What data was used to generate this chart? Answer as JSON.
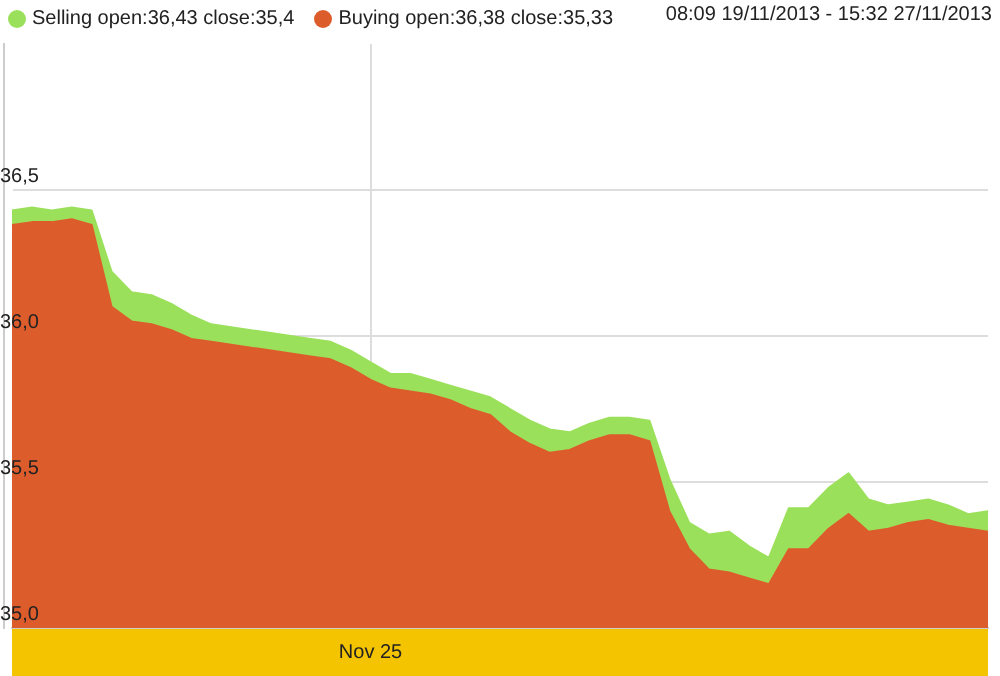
{
  "chart_data": {
    "type": "area",
    "annotations": [
      "08:09 19/11/2013 - 15:32 27/11/2013"
    ],
    "categories": [
      null,
      null,
      null,
      null,
      null,
      null,
      null,
      null,
      null,
      null,
      null,
      null,
      null,
      null,
      null,
      null,
      null,
      null,
      "Nov 25",
      null,
      null,
      null,
      null,
      null,
      null,
      null,
      null,
      null,
      null,
      null,
      null,
      null,
      null,
      null,
      null,
      null,
      null,
      null,
      null,
      null,
      null,
      null,
      null,
      null,
      null,
      null,
      null,
      null,
      null,
      null
    ],
    "series": [
      {
        "name": "Selling open:36,43 close:35,4",
        "color": "#9be05a",
        "values": [
          36.43,
          36.44,
          36.43,
          36.44,
          36.43,
          36.22,
          36.15,
          36.14,
          36.11,
          36.07,
          36.04,
          36.03,
          36.02,
          36.01,
          36.0,
          35.99,
          35.98,
          35.95,
          35.91,
          35.87,
          35.87,
          35.85,
          35.83,
          35.81,
          35.79,
          35.75,
          35.71,
          35.68,
          35.67,
          35.7,
          35.72,
          35.72,
          35.71,
          35.51,
          35.36,
          35.32,
          35.33,
          35.28,
          35.24,
          35.41,
          35.41,
          35.48,
          35.53,
          35.44,
          35.42,
          35.43,
          35.44,
          35.42,
          35.39,
          35.4
        ]
      },
      {
        "name": "Buying open:36,38 close:35,33",
        "color": "#dc5c2c",
        "values": [
          36.38,
          36.39,
          36.39,
          36.4,
          36.38,
          36.1,
          36.05,
          36.04,
          36.02,
          35.99,
          35.98,
          35.97,
          35.96,
          35.95,
          35.94,
          35.93,
          35.92,
          35.89,
          35.85,
          35.82,
          35.81,
          35.8,
          35.78,
          35.75,
          35.73,
          35.67,
          35.63,
          35.6,
          35.61,
          35.64,
          35.66,
          35.66,
          35.64,
          35.4,
          35.27,
          35.2,
          35.19,
          35.17,
          35.15,
          35.27,
          35.27,
          35.34,
          35.39,
          35.33,
          35.34,
          35.36,
          35.37,
          35.35,
          35.34,
          35.33
        ]
      }
    ],
    "ylim": [
      35,
      37
    ],
    "yticks": [
      {
        "value": 35,
        "label": "35,0"
      },
      {
        "value": 35.5,
        "label": "35,5"
      },
      {
        "value": 36,
        "label": "36,0"
      },
      {
        "value": 36.5,
        "label": "36,5"
      }
    ],
    "grid": true,
    "legend": "top left"
  }
}
